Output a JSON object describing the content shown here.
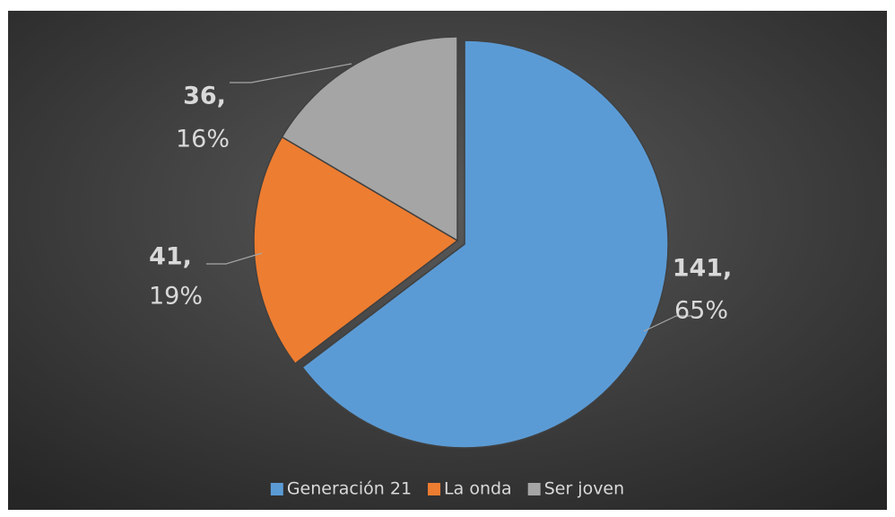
{
  "chart_data": {
    "type": "pie",
    "categories": [
      "Generación 21",
      "La onda",
      "Ser joven"
    ],
    "values": [
      141,
      41,
      36
    ],
    "value_labels": [
      "141,",
      "41,",
      "36,"
    ],
    "percent_labels": [
      "65%",
      "19%",
      "16%"
    ],
    "colors": [
      "#5b9bd5",
      "#ed7d31",
      "#a5a5a5"
    ],
    "legend": "bottom"
  }
}
